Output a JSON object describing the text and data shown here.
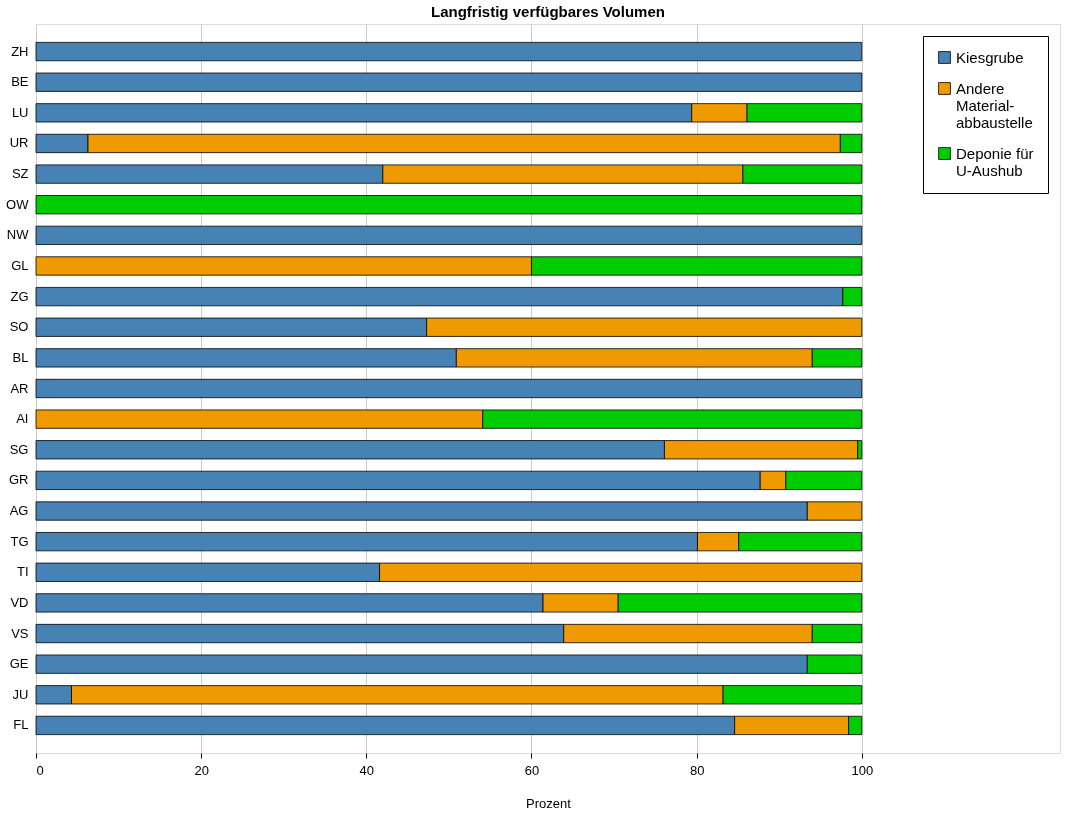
{
  "chart_data": {
    "type": "bar",
    "orientation": "horizontal",
    "stacked": true,
    "title": "Langfristig verfügbares Volumen",
    "xlabel": "Prozent",
    "categories": [
      "ZH",
      "BE",
      "LU",
      "UR",
      "SZ",
      "OW",
      "NW",
      "GL",
      "ZG",
      "SO",
      "BL",
      "AR",
      "AI",
      "SG",
      "GR",
      "AG",
      "TG",
      "TI",
      "VD",
      "VS",
      "GE",
      "JU",
      "FL"
    ],
    "series": [
      {
        "name": "Kiesgrube",
        "color": "#4682b4",
        "values": [
          100,
          100,
          79.4,
          6.3,
          42.0,
          0,
          100,
          0,
          97.7,
          47.3,
          50.9,
          100,
          0,
          76.1,
          87.7,
          93.4,
          80.1,
          41.6,
          61.4,
          63.9,
          93.4,
          4.3,
          84.6
        ]
      },
      {
        "name": "Andere\nMaterial-\nabbaustelle",
        "color": "#ee9a00",
        "values": [
          0,
          0,
          6.7,
          91.1,
          43.6,
          0,
          0,
          60.0,
          0,
          52.7,
          43.1,
          0,
          54.1,
          23.4,
          3.1,
          6.6,
          5.0,
          58.4,
          9.1,
          30.1,
          0,
          78.9,
          13.8
        ]
      },
      {
        "name": "Deponie für\nU-Aushub",
        "color": "#00cd00",
        "values": [
          0,
          0,
          13.9,
          2.6,
          14.4,
          100,
          0,
          40.0,
          2.3,
          0,
          6.0,
          0,
          45.9,
          0.5,
          9.2,
          0,
          14.9,
          0,
          29.5,
          6.0,
          6.6,
          16.8,
          1.6
        ]
      }
    ],
    "xlim": [
      0,
      124
    ],
    "xticks": [
      0,
      20,
      40,
      60,
      80,
      100
    ],
    "grid": "x",
    "legend": "top right"
  }
}
